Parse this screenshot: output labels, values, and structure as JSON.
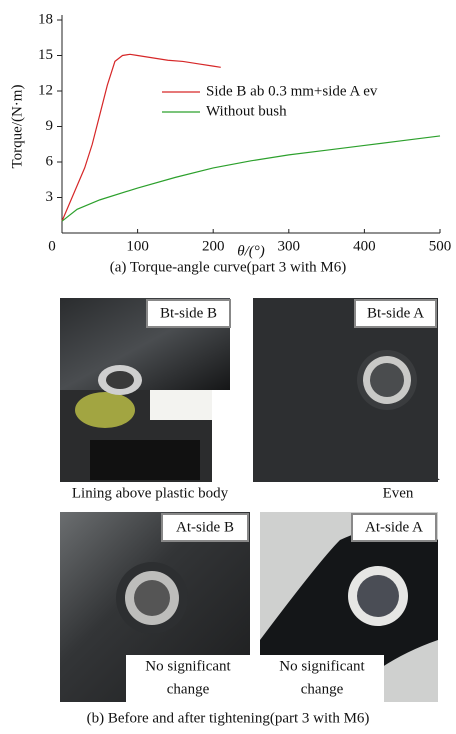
{
  "chart_data": {
    "type": "line",
    "xlabel": "θ/(°)",
    "ylabel": "Torque/(N·m)",
    "xlim": [
      0,
      500
    ],
    "xticks": [
      0,
      100,
      200,
      300,
      400,
      500
    ],
    "ylim": [
      0,
      18
    ],
    "yticks": [
      3,
      6,
      9,
      12,
      15,
      18
    ],
    "series": [
      {
        "name": "Side B ab 0.3 mm+side A ev",
        "color": "#d62728",
        "x": [
          0,
          10,
          20,
          30,
          40,
          50,
          60,
          70,
          80,
          90,
          100,
          120,
          140,
          160,
          180,
          200,
          210
        ],
        "values": [
          1.0,
          2.5,
          4.0,
          5.5,
          7.5,
          10.0,
          12.5,
          14.5,
          15.0,
          15.1,
          15.0,
          14.8,
          14.6,
          14.5,
          14.3,
          14.1,
          14.0
        ]
      },
      {
        "name": "Without bush",
        "color": "#2ca02c",
        "x": [
          0,
          20,
          50,
          100,
          150,
          200,
          250,
          300,
          350,
          400,
          450,
          500
        ],
        "values": [
          1.0,
          2.0,
          2.8,
          3.8,
          4.7,
          5.5,
          6.1,
          6.6,
          7.0,
          7.4,
          7.8,
          8.2
        ]
      }
    ]
  },
  "captions": [
    "(a) Torque-angle curve(part 3 with M6)",
    "(b) Before and after tightening(part 3 with M6)"
  ],
  "photos": [
    {
      "label": "Bt-side B"
    },
    {
      "label": "Bt-side A"
    },
    {
      "label": "At-side B",
      "note": [
        "No significant",
        "change"
      ]
    },
    {
      "label": "At-side A",
      "note": [
        "No significant",
        "change"
      ]
    }
  ],
  "row_notes": [
    "Lining above  plastic body",
    "Even"
  ]
}
